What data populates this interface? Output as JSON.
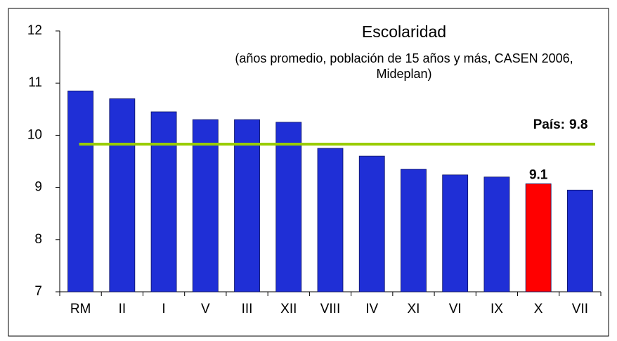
{
  "chart_data": {
    "type": "bar",
    "title": "Escolaridad",
    "subtitle": [
      "(años promedio, población de 15 años y más, CASEN 2006,",
      "Mideplan)"
    ],
    "categories": [
      "RM",
      "II",
      "I",
      "V",
      "III",
      "XII",
      "VIII",
      "IV",
      "XI",
      "VI",
      "IX",
      "X",
      "VII"
    ],
    "values": [
      10.85,
      10.7,
      10.45,
      10.3,
      10.3,
      10.25,
      9.75,
      9.6,
      9.35,
      9.24,
      9.2,
      9.07,
      8.95
    ],
    "value_labels": [
      null,
      null,
      null,
      null,
      null,
      null,
      null,
      null,
      null,
      null,
      null,
      "9.1",
      null
    ],
    "colors": [
      "#1f2fd6",
      "#1f2fd6",
      "#1f2fd6",
      "#1f2fd6",
      "#1f2fd6",
      "#1f2fd6",
      "#1f2fd6",
      "#1f2fd6",
      "#1f2fd6",
      "#1f2fd6",
      "#1f2fd6",
      "#ff0000",
      "#1f2fd6"
    ],
    "reference": {
      "label": "País:",
      "value": 9.83,
      "value_label": "9.8",
      "color": "#99cc00"
    },
    "ylim": [
      7,
      12
    ],
    "yticks": [
      7,
      8,
      9,
      10,
      11,
      12
    ]
  }
}
